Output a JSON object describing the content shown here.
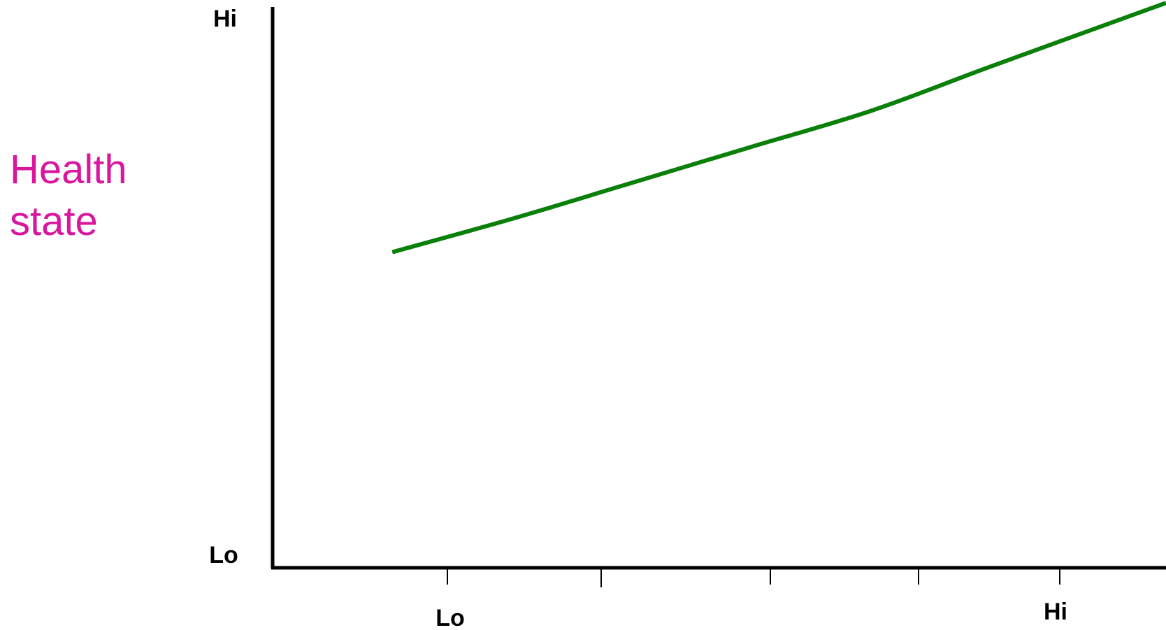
{
  "chart_data": {
    "type": "line",
    "title": "",
    "ylabel_lines": [
      "Health",
      "state"
    ],
    "xlabel": "",
    "y_tick_labels": {
      "top": "Hi",
      "bottom": "Lo"
    },
    "x_tick_labels": {
      "first": "Lo",
      "last": "Hi"
    },
    "x_ticks": [
      1,
      2,
      3,
      4,
      5
    ],
    "xlim": [
      0,
      5.6
    ],
    "ylim": [
      0,
      10
    ],
    "grid": false,
    "legend": "none",
    "series": [
      {
        "color": "#0a7f0a",
        "x": [
          0.75,
          1.5,
          2.25,
          3.0,
          3.75,
          4.5,
          5.6
        ],
        "y": [
          5.7,
          6.3,
          6.95,
          7.6,
          8.25,
          9.05,
          10.2
        ]
      }
    ],
    "colors": {
      "ylabel": "#d9169e",
      "axes": "#000000",
      "line": "#0a7f0a"
    }
  }
}
